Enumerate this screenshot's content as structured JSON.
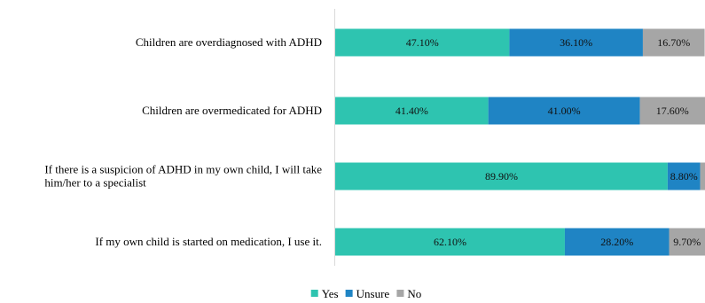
{
  "chart_data": {
    "type": "bar",
    "orientation": "horizontal",
    "stacked": true,
    "title": "",
    "xlabel": "",
    "ylabel": "",
    "xlim": [
      0,
      100
    ],
    "grid": false,
    "legend_position": "bottom",
    "categories": [
      [
        "Children are overdiagnosed with ADHD"
      ],
      [
        "Children are overmedicated for ADHD"
      ],
      [
        "If there is a suspicion of ADHD in my own child, I will take",
        "him/her to a specialist"
      ],
      [
        "If my own child is started on medication, I use it."
      ]
    ],
    "series": [
      {
        "name": "Yes",
        "color": "#2ec4b0",
        "values": [
          47.1,
          41.4,
          89.9,
          62.1
        ],
        "labels": [
          "47.10%",
          "41.40%",
          "89.90%",
          "62.10%"
        ]
      },
      {
        "name": "Unsure",
        "color": "#1f84c4",
        "values": [
          36.1,
          41.0,
          8.8,
          28.2
        ],
        "labels": [
          "36.10%",
          "41.00%",
          "8.80%",
          "28.20%"
        ]
      },
      {
        "name": "No",
        "color": "#a6a6a6",
        "values": [
          16.7,
          17.6,
          1.3,
          9.7
        ],
        "labels": [
          "16.70%",
          "17.60%",
          "",
          "9.70%"
        ]
      }
    ]
  }
}
